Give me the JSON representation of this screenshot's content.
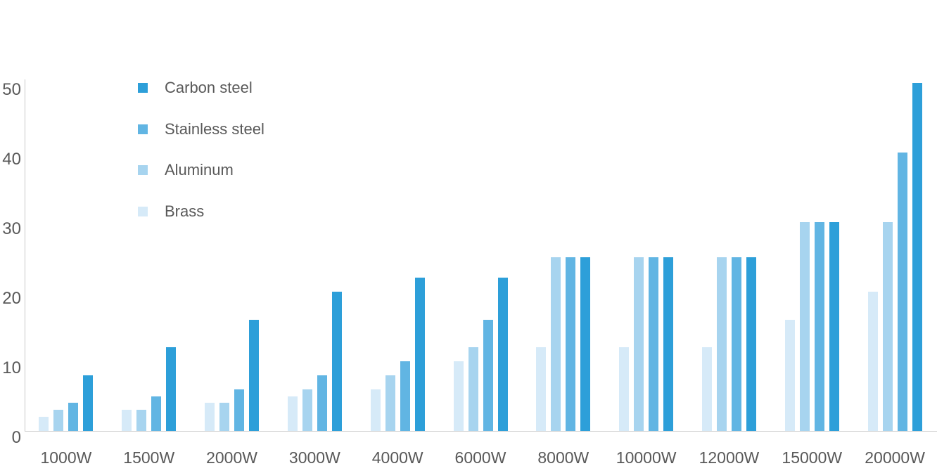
{
  "chart_data": {
    "type": "bar",
    "title": "",
    "xlabel": "",
    "ylabel": "",
    "categories": [
      "1000W",
      "1500W",
      "2000W",
      "3000W",
      "4000W",
      "6000W",
      "8000W",
      "10000W",
      "12000W",
      "15000W",
      "20000W"
    ],
    "series": [
      {
        "name": "Carbon steel",
        "color": "#2D9FD9",
        "values": [
          8,
          12,
          16,
          20,
          22,
          22,
          25,
          25,
          25,
          30,
          50
        ]
      },
      {
        "name": "Stainless steel",
        "color": "#61B5E3",
        "values": [
          4,
          5,
          6,
          8,
          10,
          16,
          25,
          25,
          25,
          30,
          40
        ]
      },
      {
        "name": "Aluminum",
        "color": "#A7D4EF",
        "values": [
          3,
          3,
          4,
          6,
          8,
          12,
          25,
          25,
          25,
          30,
          30
        ]
      },
      {
        "name": "Brass",
        "color": "#D6EAF8",
        "values": [
          2,
          3,
          4,
          5,
          6,
          10,
          12,
          12,
          12,
          16,
          20
        ]
      }
    ],
    "bar_order_left_to_right": [
      "Brass",
      "Aluminum",
      "Stainless steel",
      "Carbon steel"
    ],
    "yticks": [
      0,
      10,
      20,
      30,
      40,
      50
    ],
    "ylim": [
      0,
      50
    ],
    "grid": false,
    "legend_position": "top-left"
  },
  "styles": {
    "background": "#FFFFFF",
    "axis_line_color": "#C8C8C8",
    "label_color": "#595959"
  }
}
